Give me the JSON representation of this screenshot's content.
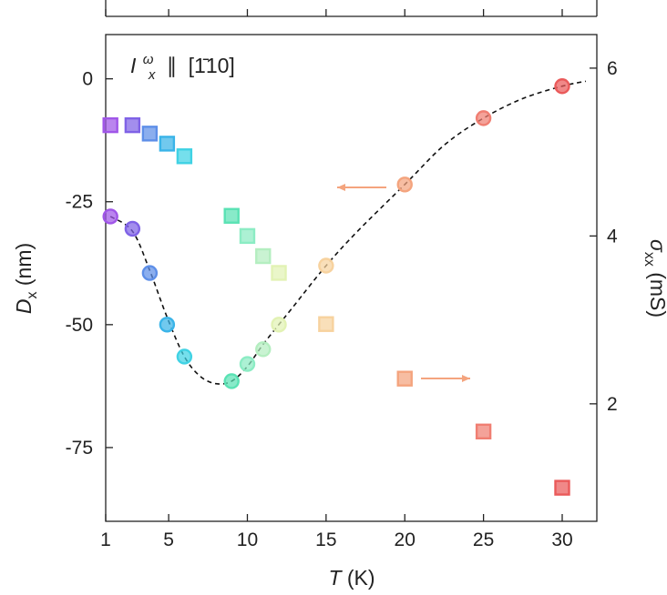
{
  "chart_data": {
    "type": "scatter",
    "annotation": {
      "symbol": "I",
      "superscript": "ω",
      "subscript": "x",
      "parallel": "∥",
      "direction": "[1̄10]"
    },
    "x_axis": {
      "label_var": "T",
      "label_unit": " (K)",
      "range": [
        1,
        32.2
      ],
      "ticks": [
        1,
        5,
        10,
        15,
        20,
        25,
        30
      ],
      "tick_labels": [
        "1",
        "5",
        "10",
        "15",
        "20",
        "25",
        "30"
      ]
    },
    "y_left": {
      "label_var": "D",
      "label_sub": "x",
      "label_unit": " (nm)",
      "range": [
        -90,
        9
      ],
      "ticks": [
        0,
        -25,
        -50,
        -75
      ],
      "tick_labels": [
        "0",
        "-25",
        "-50",
        "-75"
      ]
    },
    "y_right": {
      "label_var": "σ",
      "label_sub": "xx",
      "label_unit": " (mS)",
      "range": [
        0.6,
        6.4
      ],
      "ticks": [
        2,
        4,
        6
      ],
      "tick_labels": [
        "2",
        "4",
        "6"
      ]
    },
    "series": [
      {
        "axis": "left",
        "marker": "circle",
        "x": [
          1.3,
          2.7,
          3.8,
          4.9,
          6.0,
          9.0,
          10.0,
          11.0,
          12.0,
          15.0,
          20.0,
          25.0,
          30.0
        ],
        "y": [
          -28,
          -30.5,
          -39.5,
          -50,
          -56.5,
          -61.5,
          -58,
          -55,
          -50,
          -38,
          -21.5,
          -8,
          -1.5
        ],
        "colors": [
          "#a056e8",
          "#7f62e6",
          "#5e8fe8",
          "#3ab4e8",
          "#40d2e4",
          "#5ae2b4",
          "#8cecc4",
          "#b4eec0",
          "#e2f2b4",
          "#f7d29e",
          "#f4a47e",
          "#f07e72",
          "#ea5a5a"
        ]
      },
      {
        "axis": "right",
        "marker": "square",
        "x": [
          1.3,
          2.7,
          3.8,
          4.9,
          6.0,
          9.0,
          10.0,
          11.0,
          12.0,
          15.0,
          20.0,
          25.0,
          30.0
        ],
        "y": [
          5.32,
          5.32,
          5.22,
          5.1,
          4.95,
          4.24,
          4.0,
          3.76,
          3.56,
          2.95,
          2.3,
          1.67,
          1.0
        ],
        "colors": [
          "#a056e8",
          "#7f62e6",
          "#5e8fe8",
          "#3ab4e8",
          "#40d2e4",
          "#5ae2b4",
          "#8cecc4",
          "#b4eec0",
          "#e2f2b4",
          "#f7d29e",
          "#f4a47e",
          "#f07e72",
          "#ea5a5a"
        ]
      }
    ],
    "fit_curve": {
      "axis": "left",
      "style": "dashed",
      "x": [
        1.3,
        2.7,
        3.8,
        4.9,
        6.0,
        7.0,
        8.0,
        9.0,
        10.0,
        11.0,
        12.0,
        13.0,
        15.0,
        17.0,
        20.0,
        22.5,
        25.0,
        27.5,
        30.0,
        31.5
      ],
      "y": [
        -28,
        -31,
        -39,
        -48.5,
        -56.5,
        -60.5,
        -62,
        -61.5,
        -58.5,
        -54,
        -50,
        -46,
        -38,
        -31,
        -21.5,
        -13.5,
        -8,
        -4,
        -1.5,
        -0.5
      ]
    },
    "arrows": [
      {
        "points_to": "left",
        "color": "#f4a47e"
      },
      {
        "points_to": "right",
        "color": "#f4a47e"
      }
    ],
    "grid": false,
    "top_panel_ticks": [
      1,
      5,
      10,
      15,
      20,
      25,
      30
    ]
  }
}
